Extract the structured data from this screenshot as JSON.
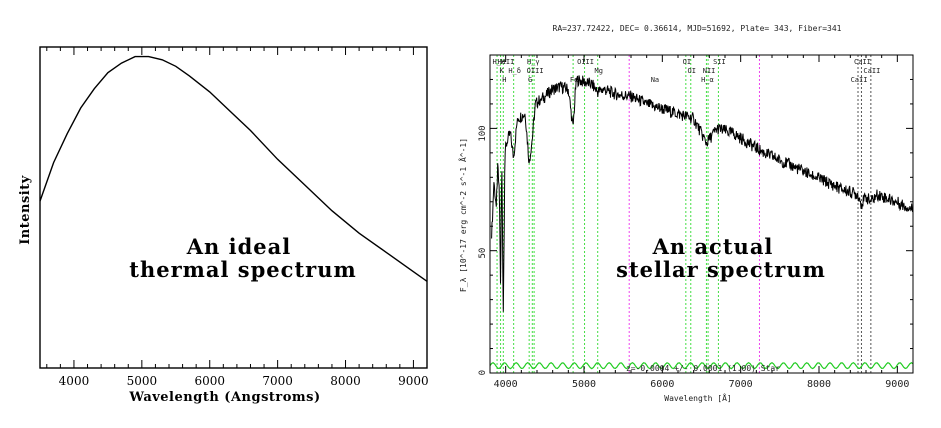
{
  "chart_data": [
    {
      "type": "line",
      "title": "",
      "xlabel": "Wavelength (Angstroms)",
      "ylabel": "Intensity",
      "annotation": [
        "An ideal",
        "thermal spectrum"
      ],
      "x_ticks": [
        4000,
        5000,
        6000,
        7000,
        8000,
        9000
      ],
      "xlim": [
        3500,
        9200
      ],
      "ylim": [
        0,
        1
      ],
      "grid": false,
      "series": [
        {
          "x": [
            3500,
            3700,
            3900,
            4100,
            4300,
            4500,
            4700,
            4900,
            5000,
            5100,
            5300,
            5500,
            5700,
            6000,
            6300,
            6600,
            7000,
            7400,
            7800,
            8200,
            8600,
            9000,
            9200
          ],
          "y": [
            0.52,
            0.64,
            0.73,
            0.81,
            0.87,
            0.92,
            0.95,
            0.97,
            0.97,
            0.97,
            0.96,
            0.94,
            0.91,
            0.86,
            0.8,
            0.74,
            0.65,
            0.57,
            0.49,
            0.42,
            0.36,
            0.3,
            0.27
          ]
        }
      ]
    },
    {
      "type": "line",
      "title": "RA=237.72422, DEC= 0.36614, MJD=51692, Plate= 343, Fiber=341",
      "xlabel": "Wavelength [Å]",
      "ylabel": "F_λ [10^-17 erg cm^-2 s^-1 Å^-1]",
      "annotation": [
        "An actual",
        "stellar spectrum"
      ],
      "bottom_text": "z=-0.0004 +/- 0.0001 (1.00) Star",
      "x_ticks": [
        4000,
        5000,
        6000,
        7000,
        8000,
        9000
      ],
      "y_ticks": [
        0,
        50,
        100
      ],
      "xlim": [
        3800,
        9200
      ],
      "ylim": [
        0,
        130
      ],
      "grid": false,
      "line_labels": [
        {
          "text": "H_H",
          "x": 3900
        },
        {
          "text": "K",
          "x": 3935
        },
        {
          "text": "H",
          "x": 3970
        },
        {
          "text": "HeII",
          "x": 3990
        },
        {
          "text": "H_δ",
          "x": 4102
        },
        {
          "text": "G",
          "x": 4300
        },
        {
          "text": "H_γ",
          "x": 4340
        },
        {
          "text": "OIII",
          "x": 4363
        },
        {
          "text": "Fe",
          "x": 4860
        },
        {
          "text": "OIII",
          "x": 5007
        },
        {
          "text": "Mg",
          "x": 5175
        },
        {
          "text": "Na",
          "x": 5893
        },
        {
          "text": "OI",
          "x": 6300
        },
        {
          "text": "OI",
          "x": 6363
        },
        {
          "text": "H_α",
          "x": 6563
        },
        {
          "text": "SII",
          "x": 6716
        },
        {
          "text": "NII",
          "x": 6584
        },
        {
          "text": "CaII",
          "x": 8498
        },
        {
          "text": "CaII",
          "x": 8542
        },
        {
          "text": "CaII",
          "x": 8662
        }
      ],
      "vlines_green": [
        3890,
        3935,
        3970,
        4102,
        4300,
        4340,
        4363,
        4861,
        5007,
        5175,
        6300,
        6363,
        6563,
        6584,
        6716
      ],
      "vlines_magenta": [
        5577,
        7240
      ],
      "vlines_black": [
        8498,
        8542,
        8662
      ],
      "series": [
        {
          "x": [
            3820,
            3850,
            3880,
            3900,
            3920,
            3935,
            3950,
            3970,
            3990,
            4020,
            4060,
            4100,
            4150,
            4200,
            4250,
            4300,
            4340,
            4380,
            4450,
            4500,
            4600,
            4700,
            4800,
            4860,
            4900,
            5000,
            5100,
            5175,
            5250,
            5400,
            5600,
            5800,
            5893,
            6000,
            6200,
            6400,
            6563,
            6700,
            6900,
            7100,
            7300,
            7500,
            7700,
            7900,
            8100,
            8300,
            8498,
            8542,
            8600,
            8662,
            8750,
            8900,
            9050,
            9200
          ],
          "y": [
            55,
            78,
            68,
            85,
            72,
            35,
            88,
            25,
            90,
            95,
            98,
            88,
            104,
            105,
            106,
            86,
            96,
            110,
            112,
            113,
            116,
            117,
            116,
            100,
            120,
            119,
            118,
            115,
            116,
            114,
            113,
            110,
            109,
            108,
            106,
            104,
            94,
            100,
            98,
            94,
            90,
            87,
            84,
            81,
            78,
            75,
            73,
            69,
            72,
            70,
            73,
            71,
            69,
            67
          ]
        }
      ]
    }
  ]
}
